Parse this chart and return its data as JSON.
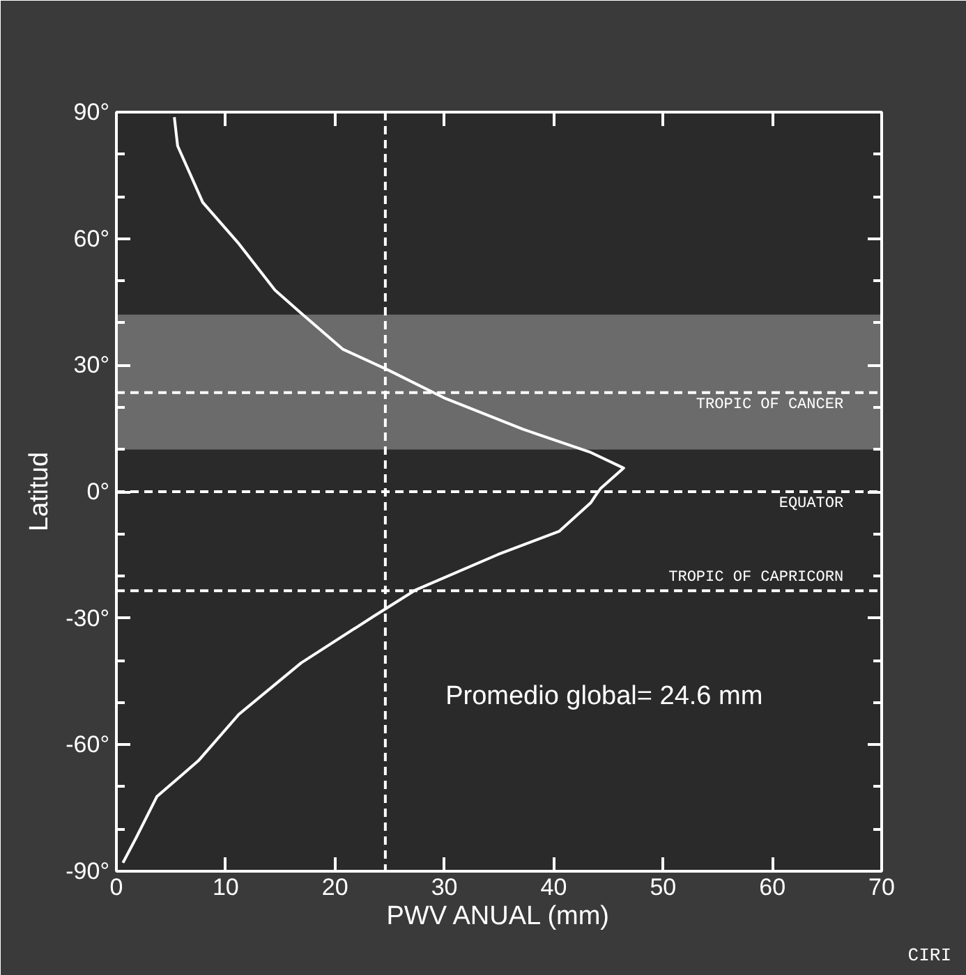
{
  "chart_data": {
    "type": "line",
    "xlabel": "PWV ANUAL (mm)",
    "ylabel": "Latitud",
    "xlim": [
      0,
      70
    ],
    "xticks": [
      0,
      10,
      20,
      30,
      40,
      50,
      60,
      70
    ],
    "ylim": [
      -90,
      90
    ],
    "yticks": [
      {
        "value": -90,
        "label": "-90°"
      },
      {
        "value": -60,
        "label": "-60°"
      },
      {
        "value": -30,
        "label": "-30°"
      },
      {
        "value": 0,
        "label": "0°"
      },
      {
        "value": 30,
        "label": "30°"
      },
      {
        "value": 60,
        "label": "60°"
      },
      {
        "value": 90,
        "label": "90°"
      }
    ],
    "series": [
      {
        "color": "#ffffff",
        "x": [
          5.3,
          5.6,
          7.9,
          11.2,
          14.5,
          16.9,
          20.7,
          24.9,
          30.1,
          37.2,
          43.4,
          46.4,
          44.3,
          43.8,
          43.4,
          40.5,
          34.9,
          27.3,
          23.5,
          16.9,
          11.2,
          7.5,
          3.7,
          1.8,
          0.6
        ],
        "values": [
          88.8,
          82,
          68.6,
          58.8,
          47.8,
          42.3,
          33.8,
          28.8,
          22.1,
          14.8,
          9.3,
          5.6,
          0.8,
          -1,
          -2.6,
          -9.4,
          -14.9,
          -23.4,
          -29.6,
          -40.6,
          -52.8,
          -63.8,
          -72.3,
          -82.1,
          -88
        ]
      }
    ],
    "bands": [
      {
        "axis": "y",
        "from": 10,
        "to": 42,
        "label": null,
        "color": "#6b6b6b"
      }
    ],
    "ref_lines": [
      {
        "axis": "y",
        "value": 23.5,
        "label": "TROPIC OF CANCER",
        "line_style": "dashed"
      },
      {
        "axis": "y",
        "value": 0,
        "label": "EQUATOR",
        "line_style": "dashed"
      },
      {
        "axis": "y",
        "value": -23.5,
        "label": "TROPIC OF CAPRICORN",
        "line_style": "dashed"
      },
      {
        "axis": "x",
        "value": 24.6,
        "label": null,
        "line_style": "dashed"
      }
    ],
    "annotations": [
      "Promedio global= 24.6 mm",
      "CIRI"
    ],
    "grid": false,
    "line_style": "solid",
    "marker": "none"
  }
}
